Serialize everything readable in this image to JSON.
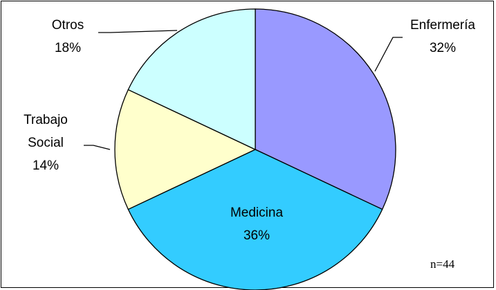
{
  "chart_data": {
    "type": "pie",
    "title": "",
    "slices": [
      {
        "label": "Enfermería",
        "label_lines": [
          "Enfermería"
        ],
        "percent_label": "32%",
        "value": 32,
        "color": "#9999ff"
      },
      {
        "label": "Medicina",
        "label_lines": [
          "Medicina"
        ],
        "percent_label": "36%",
        "value": 36,
        "color": "#33ccff"
      },
      {
        "label": "Trabajo Social",
        "label_lines": [
          "Trabajo",
          "Social"
        ],
        "percent_label": "14%",
        "value": 14,
        "color": "#ffffcc"
      },
      {
        "label": "Otros",
        "label_lines": [
          "Otros"
        ],
        "percent_label": "18%",
        "value": 18,
        "color": "#ccffff"
      }
    ],
    "start_angle_deg": 0,
    "direction": "clockwise",
    "legend": "none",
    "annotation": "n=44"
  }
}
